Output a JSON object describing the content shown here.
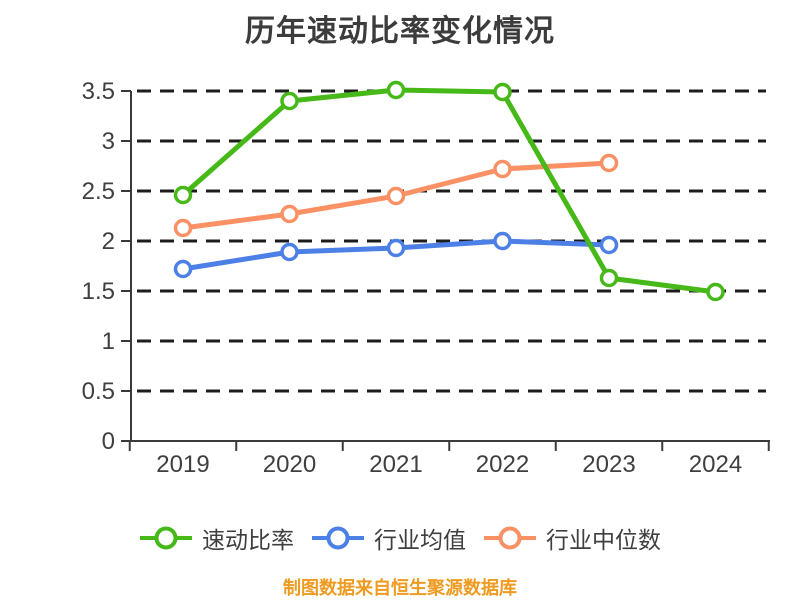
{
  "chart_data": {
    "type": "line",
    "title": "历年速动比率变化情况",
    "categories": [
      "2019",
      "2020",
      "2021",
      "2022",
      "2023",
      "2024"
    ],
    "yticks": [
      "0",
      "0.5",
      "1",
      "1.5",
      "2",
      "2.5",
      "3",
      "3.5"
    ],
    "ylim": [
      0,
      3.7
    ],
    "grid": "horizontal-dashed",
    "legend_position": "bottom",
    "series": [
      {
        "name": "速动比率",
        "color": "#46b919",
        "values": [
          2.46,
          3.4,
          3.51,
          3.49,
          1.63,
          1.49
        ]
      },
      {
        "name": "行业均值",
        "color": "#4c80e6",
        "values": [
          1.72,
          1.89,
          1.93,
          2.0,
          1.96,
          null
        ]
      },
      {
        "name": "行业中位数",
        "color": "#fa9164",
        "values": [
          2.13,
          2.27,
          2.45,
          2.72,
          2.78,
          null
        ]
      }
    ]
  },
  "caption": "制图数据来自恒生聚源数据库",
  "colors": {
    "background": "#ffffff",
    "title_text": "#3c3c3c",
    "axis": "#3a3a3a",
    "tick_label": "#3f3f3f",
    "grid": "#1c1c1c",
    "legend_text": "#3f3f3f",
    "caption": "#ef9b22",
    "marker_fill": "#ffffff"
  }
}
